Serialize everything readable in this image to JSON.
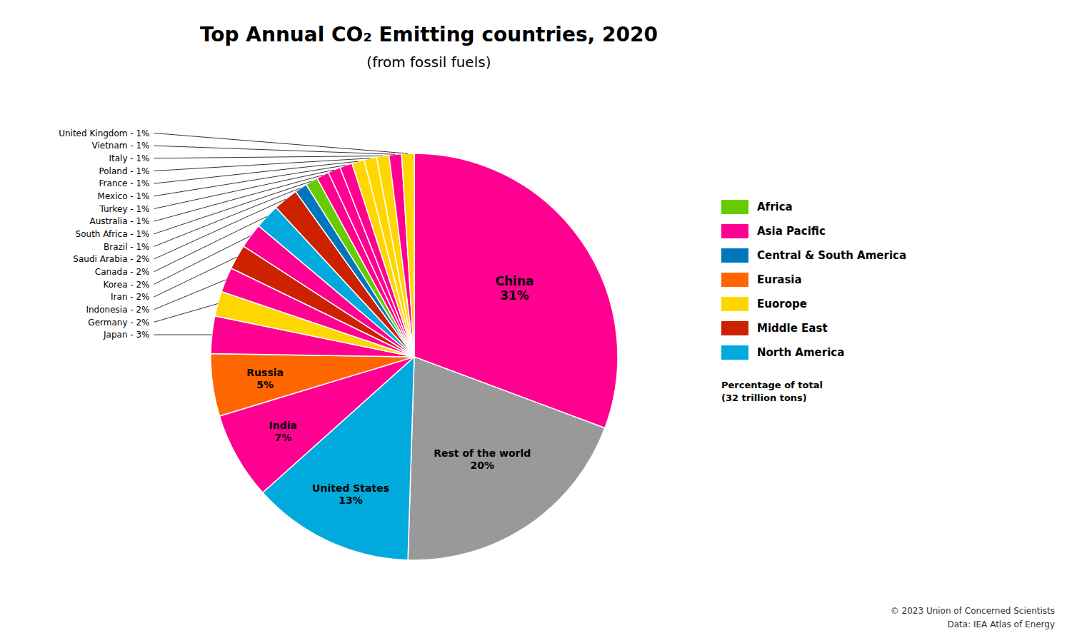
{
  "chart_data": {
    "type": "pie",
    "title": "Top Annual CO₂ Emitting countries, 2020",
    "subtitle": "(from fossil fuels)",
    "categories": [
      "China",
      "Rest of the world",
      "United States",
      "India",
      "Russia",
      "Japan",
      "Germany",
      "Indonesia",
      "Iran",
      "Korea",
      "Canada",
      "Saudi Arabia",
      "Brazil",
      "South Africa",
      "Australia",
      "Turkey",
      "Mexico",
      "France",
      "Poland",
      "Italy",
      "Vietnam",
      "United Kingdom"
    ],
    "values": [
      31,
      20,
      13,
      7,
      5,
      3,
      2,
      2,
      2,
      2,
      2,
      2,
      1,
      1,
      1,
      1,
      1,
      1,
      1,
      1,
      1,
      1
    ],
    "value_labels": [
      "31%",
      "20%",
      "13%",
      "7%",
      "5%",
      "Japan - 3%",
      "Germany - 2%",
      "Indonesia - 2%",
      "Iran - 2%",
      "Korea - 2%",
      "Canada - 2%",
      "Saudi Arabia - 2%",
      "Brazil - 1%",
      "South Africa - 1%",
      "Australia - 1%",
      "Turkey - 1%",
      "Mexico - 1%",
      "France - 1%",
      "Poland - 1%",
      "Italy - 1%",
      "Vietnam - 1%",
      "United Kingdom - 1%"
    ],
    "colors": [
      "#FF0090",
      "#999999",
      "#00AADD",
      "#FF0090",
      "#FF6600",
      "#FF0090",
      "#FFD700",
      "#FF0090",
      "#CC2200",
      "#FF0090",
      "#00AADD",
      "#CC2200",
      "#0077BB",
      "#66CC00",
      "#FF0090",
      "#FF0090",
      "#FF0090",
      "#FFD700",
      "#FFD700",
      "#FFD700",
      "#FF0090",
      "#FFD700"
    ],
    "data_labels": true,
    "legend": "right",
    "legend_entries": [
      {
        "name": "Africa",
        "color": "#66CC00"
      },
      {
        "name": "Asia Pacific",
        "color": "#FF0090"
      },
      {
        "name": "Central & South America",
        "color": "#0077BB"
      },
      {
        "name": "Eurasia",
        "color": "#FF6600"
      },
      {
        "name": "Euorope",
        "color": "#FFD700"
      },
      {
        "name": "Middle East",
        "color": "#CC2200"
      },
      {
        "name": "North America",
        "color": "#00AADD"
      }
    ],
    "note": [
      "Percentage of total",
      "(32 trillion tons)"
    ],
    "footnotes": [
      "© 2023 Union of Concerned Scientists",
      "Data: IEA Atlas of Energy"
    ]
  }
}
